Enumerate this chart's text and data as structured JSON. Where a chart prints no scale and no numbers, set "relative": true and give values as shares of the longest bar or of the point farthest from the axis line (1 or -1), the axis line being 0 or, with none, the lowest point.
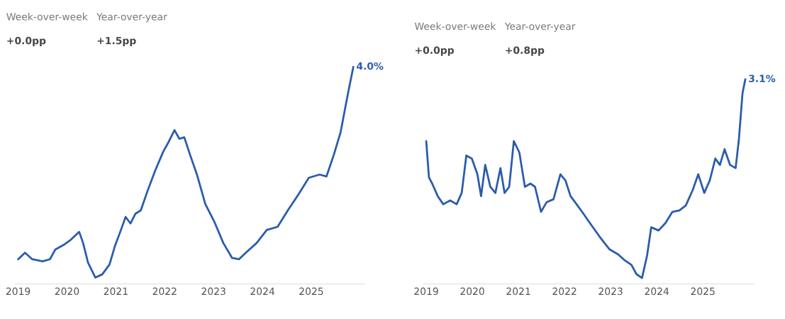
{
  "chart_data": [
    {
      "type": "line",
      "relative": true,
      "tick_labels": "x",
      "grid": false,
      "marker": "none",
      "line_style": "solid",
      "xlim": [
        2018.95,
        2026.1
      ],
      "xticks": [
        2019,
        2020,
        2021,
        2022,
        2023,
        2024,
        2025
      ],
      "annotations": [
        "Week-over-week",
        "+0.0pp",
        "Year-over-year",
        "+1.5pp",
        {
          "text": "4.0%",
          "x": 2025.86,
          "y": 1.0
        }
      ],
      "series": [
        {
          "color": "#2b5cad",
          "x": [
            2019.0,
            2019.14,
            2019.29,
            2019.5,
            2019.65,
            2019.76,
            2019.93,
            2020.08,
            2020.25,
            2020.33,
            2020.43,
            2020.58,
            2020.72,
            2020.87,
            2020.98,
            2021.08,
            2021.2,
            2021.3,
            2021.4,
            2021.51,
            2021.65,
            2021.8,
            2021.97,
            2022.08,
            2022.2,
            2022.3,
            2022.4,
            2022.52,
            2022.66,
            2022.83,
            2023.02,
            2023.2,
            2023.38,
            2023.52,
            2023.66,
            2023.88,
            2024.09,
            2024.31,
            2024.52,
            2024.74,
            2024.95,
            2025.17,
            2025.31,
            2025.46,
            2025.6,
            2025.74,
            2025.86
          ],
          "values": [
            0.087,
            0.118,
            0.087,
            0.077,
            0.087,
            0.133,
            0.155,
            0.18,
            0.217,
            0.164,
            0.071,
            0.0,
            0.015,
            0.062,
            0.149,
            0.211,
            0.288,
            0.257,
            0.303,
            0.319,
            0.412,
            0.505,
            0.598,
            0.644,
            0.7,
            0.659,
            0.666,
            0.582,
            0.489,
            0.35,
            0.263,
            0.164,
            0.093,
            0.087,
            0.118,
            0.164,
            0.226,
            0.241,
            0.319,
            0.396,
            0.474,
            0.489,
            0.48,
            0.582,
            0.69,
            0.861,
            1.0
          ]
        }
      ]
    },
    {
      "type": "line",
      "relative": true,
      "tick_labels": "x",
      "grid": false,
      "marker": "none",
      "line_style": "solid",
      "xlim": [
        2018.95,
        2026.1
      ],
      "xticks": [
        2019,
        2020,
        2021,
        2022,
        2023,
        2024,
        2025
      ],
      "annotations": [
        "Week-over-week",
        "+0.0pp",
        "Year-over-year",
        "+0.8pp",
        {
          "text": "3.1%",
          "x": 2025.92,
          "y": 1.0
        }
      ],
      "series": [
        {
          "color": "#2b5cad",
          "x": [
            2019.0,
            2019.06,
            2019.13,
            2019.25,
            2019.37,
            2019.52,
            2019.66,
            2019.77,
            2019.87,
            2019.99,
            2020.11,
            2020.19,
            2020.28,
            2020.39,
            2020.5,
            2020.61,
            2020.7,
            2020.8,
            2020.9,
            2021.02,
            2021.14,
            2021.26,
            2021.36,
            2021.49,
            2021.61,
            2021.76,
            2021.91,
            2022.02,
            2022.13,
            2022.23,
            2022.38,
            2022.57,
            2022.76,
            2022.97,
            2023.16,
            2023.31,
            2023.45,
            2023.56,
            2023.68,
            2023.79,
            2023.88,
            2024.04,
            2024.19,
            2024.34,
            2024.49,
            2024.63,
            2024.78,
            2024.9,
            2025.03,
            2025.15,
            2025.27,
            2025.37,
            2025.47,
            2025.59,
            2025.71,
            2025.78,
            2025.86,
            2025.92
          ],
          "values": [
            0.689,
            0.506,
            0.475,
            0.412,
            0.371,
            0.39,
            0.371,
            0.428,
            0.616,
            0.601,
            0.522,
            0.412,
            0.569,
            0.459,
            0.428,
            0.553,
            0.428,
            0.459,
            0.689,
            0.632,
            0.459,
            0.475,
            0.459,
            0.333,
            0.381,
            0.396,
            0.522,
            0.491,
            0.412,
            0.381,
            0.333,
            0.27,
            0.208,
            0.145,
            0.119,
            0.088,
            0.066,
            0.019,
            0.0,
            0.113,
            0.255,
            0.239,
            0.277,
            0.333,
            0.34,
            0.365,
            0.443,
            0.522,
            0.428,
            0.491,
            0.601,
            0.569,
            0.648,
            0.569,
            0.553,
            0.695,
            0.931,
            1.0
          ]
        }
      ]
    }
  ]
}
